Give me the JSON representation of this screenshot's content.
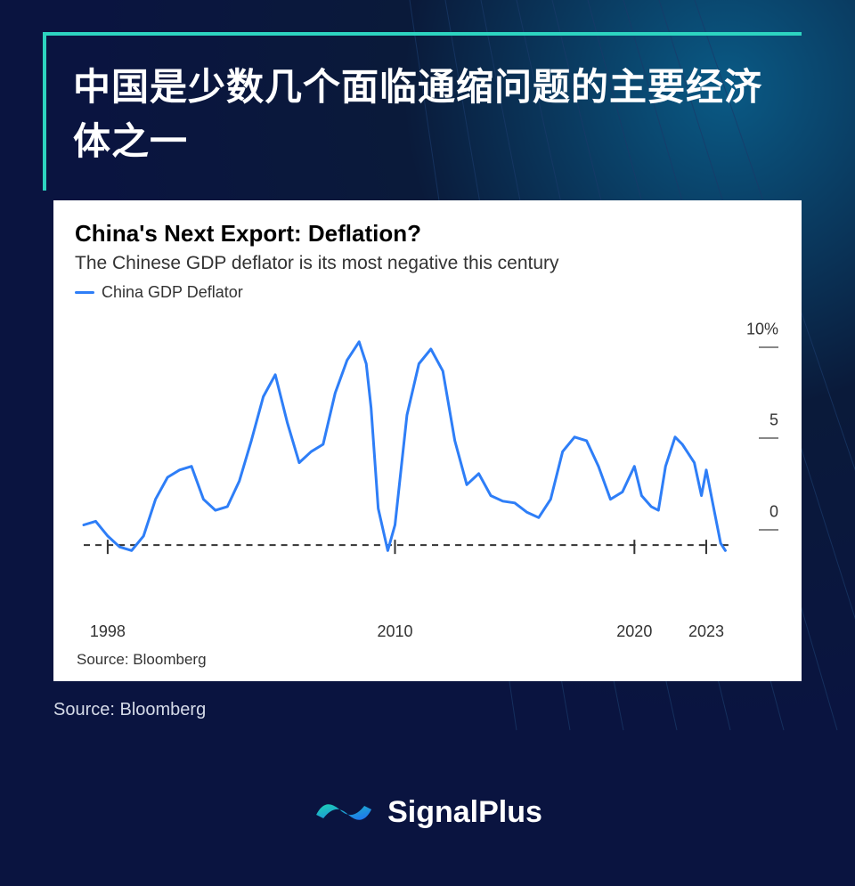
{
  "background": {
    "color_from": "#0a5a85",
    "color_to": "#0a1440",
    "decorative_line_color": "#1a3a6a"
  },
  "title_block": {
    "accent_color": "#2dd4c0",
    "text": "中国是少数几个面临通缩问题的主要经济体之一",
    "text_color": "#ffffff",
    "font_size": 42
  },
  "chart": {
    "type": "line",
    "title": "China's Next Export: Deflation?",
    "title_fontsize": 26,
    "subtitle": "The Chinese GDP deflator is its most negative this century",
    "subtitle_fontsize": 21,
    "legend_label": "China GDP Deflator",
    "background_color": "#ffffff",
    "line_color": "#2e7ef7",
    "line_width": 3,
    "zero_line_style": "dashed",
    "zero_line_color": "#333333",
    "axis_color": "#333333",
    "ylim": [
      -3,
      11
    ],
    "y_ticks": [
      {
        "value": 10,
        "label": "10%"
      },
      {
        "value": 5,
        "label": "5"
      },
      {
        "value": 0,
        "label": "0"
      }
    ],
    "x_ticks": [
      {
        "year": 1998,
        "label": "1998"
      },
      {
        "year": 2010,
        "label": "2010"
      },
      {
        "year": 2020,
        "label": "2020"
      },
      {
        "year": 2023,
        "label": "2023"
      }
    ],
    "x_range": [
      1997,
      2024
    ],
    "series": [
      {
        "x": 1997.0,
        "y": -0.4
      },
      {
        "x": 1997.5,
        "y": -0.2
      },
      {
        "x": 1998.0,
        "y": -1.0
      },
      {
        "x": 1998.5,
        "y": -1.6
      },
      {
        "x": 1999.0,
        "y": -1.8
      },
      {
        "x": 1999.5,
        "y": -1.0
      },
      {
        "x": 2000.0,
        "y": 1.0
      },
      {
        "x": 2000.5,
        "y": 2.2
      },
      {
        "x": 2001.0,
        "y": 2.6
      },
      {
        "x": 2001.5,
        "y": 2.8
      },
      {
        "x": 2002.0,
        "y": 1.0
      },
      {
        "x": 2002.5,
        "y": 0.4
      },
      {
        "x": 2003.0,
        "y": 0.6
      },
      {
        "x": 2003.5,
        "y": 2.0
      },
      {
        "x": 2004.0,
        "y": 4.2
      },
      {
        "x": 2004.5,
        "y": 6.6
      },
      {
        "x": 2005.0,
        "y": 7.8
      },
      {
        "x": 2005.5,
        "y": 5.2
      },
      {
        "x": 2006.0,
        "y": 3.0
      },
      {
        "x": 2006.5,
        "y": 3.6
      },
      {
        "x": 2007.0,
        "y": 4.0
      },
      {
        "x": 2007.5,
        "y": 6.8
      },
      {
        "x": 2008.0,
        "y": 8.6
      },
      {
        "x": 2008.5,
        "y": 9.6
      },
      {
        "x": 2008.8,
        "y": 8.4
      },
      {
        "x": 2009.0,
        "y": 6.0
      },
      {
        "x": 2009.3,
        "y": 0.5
      },
      {
        "x": 2009.7,
        "y": -1.8
      },
      {
        "x": 2010.0,
        "y": -0.4
      },
      {
        "x": 2010.5,
        "y": 5.6
      },
      {
        "x": 2011.0,
        "y": 8.4
      },
      {
        "x": 2011.5,
        "y": 9.2
      },
      {
        "x": 2012.0,
        "y": 8.0
      },
      {
        "x": 2012.5,
        "y": 4.2
      },
      {
        "x": 2013.0,
        "y": 1.8
      },
      {
        "x": 2013.5,
        "y": 2.4
      },
      {
        "x": 2014.0,
        "y": 1.2
      },
      {
        "x": 2014.5,
        "y": 0.9
      },
      {
        "x": 2015.0,
        "y": 0.8
      },
      {
        "x": 2015.5,
        "y": 0.3
      },
      {
        "x": 2016.0,
        "y": 0.0
      },
      {
        "x": 2016.5,
        "y": 1.0
      },
      {
        "x": 2017.0,
        "y": 3.6
      },
      {
        "x": 2017.5,
        "y": 4.4
      },
      {
        "x": 2018.0,
        "y": 4.2
      },
      {
        "x": 2018.5,
        "y": 2.8
      },
      {
        "x": 2019.0,
        "y": 1.0
      },
      {
        "x": 2019.5,
        "y": 1.4
      },
      {
        "x": 2020.0,
        "y": 2.8
      },
      {
        "x": 2020.3,
        "y": 1.2
      },
      {
        "x": 2020.7,
        "y": 0.6
      },
      {
        "x": 2021.0,
        "y": 0.4
      },
      {
        "x": 2021.3,
        "y": 2.8
      },
      {
        "x": 2021.7,
        "y": 4.4
      },
      {
        "x": 2022.0,
        "y": 4.0
      },
      {
        "x": 2022.5,
        "y": 3.0
      },
      {
        "x": 2022.8,
        "y": 1.2
      },
      {
        "x": 2023.0,
        "y": 2.6
      },
      {
        "x": 2023.3,
        "y": 0.6
      },
      {
        "x": 2023.6,
        "y": -1.4
      },
      {
        "x": 2023.8,
        "y": -1.8
      }
    ],
    "source_inner": "Source: Bloomberg"
  },
  "outer_source": "Source: Bloomberg",
  "brand": {
    "name": "SignalPlus",
    "logo_color_from": "#1dd3b0",
    "logo_color_to": "#1e6ef5",
    "text_color": "#ffffff"
  }
}
